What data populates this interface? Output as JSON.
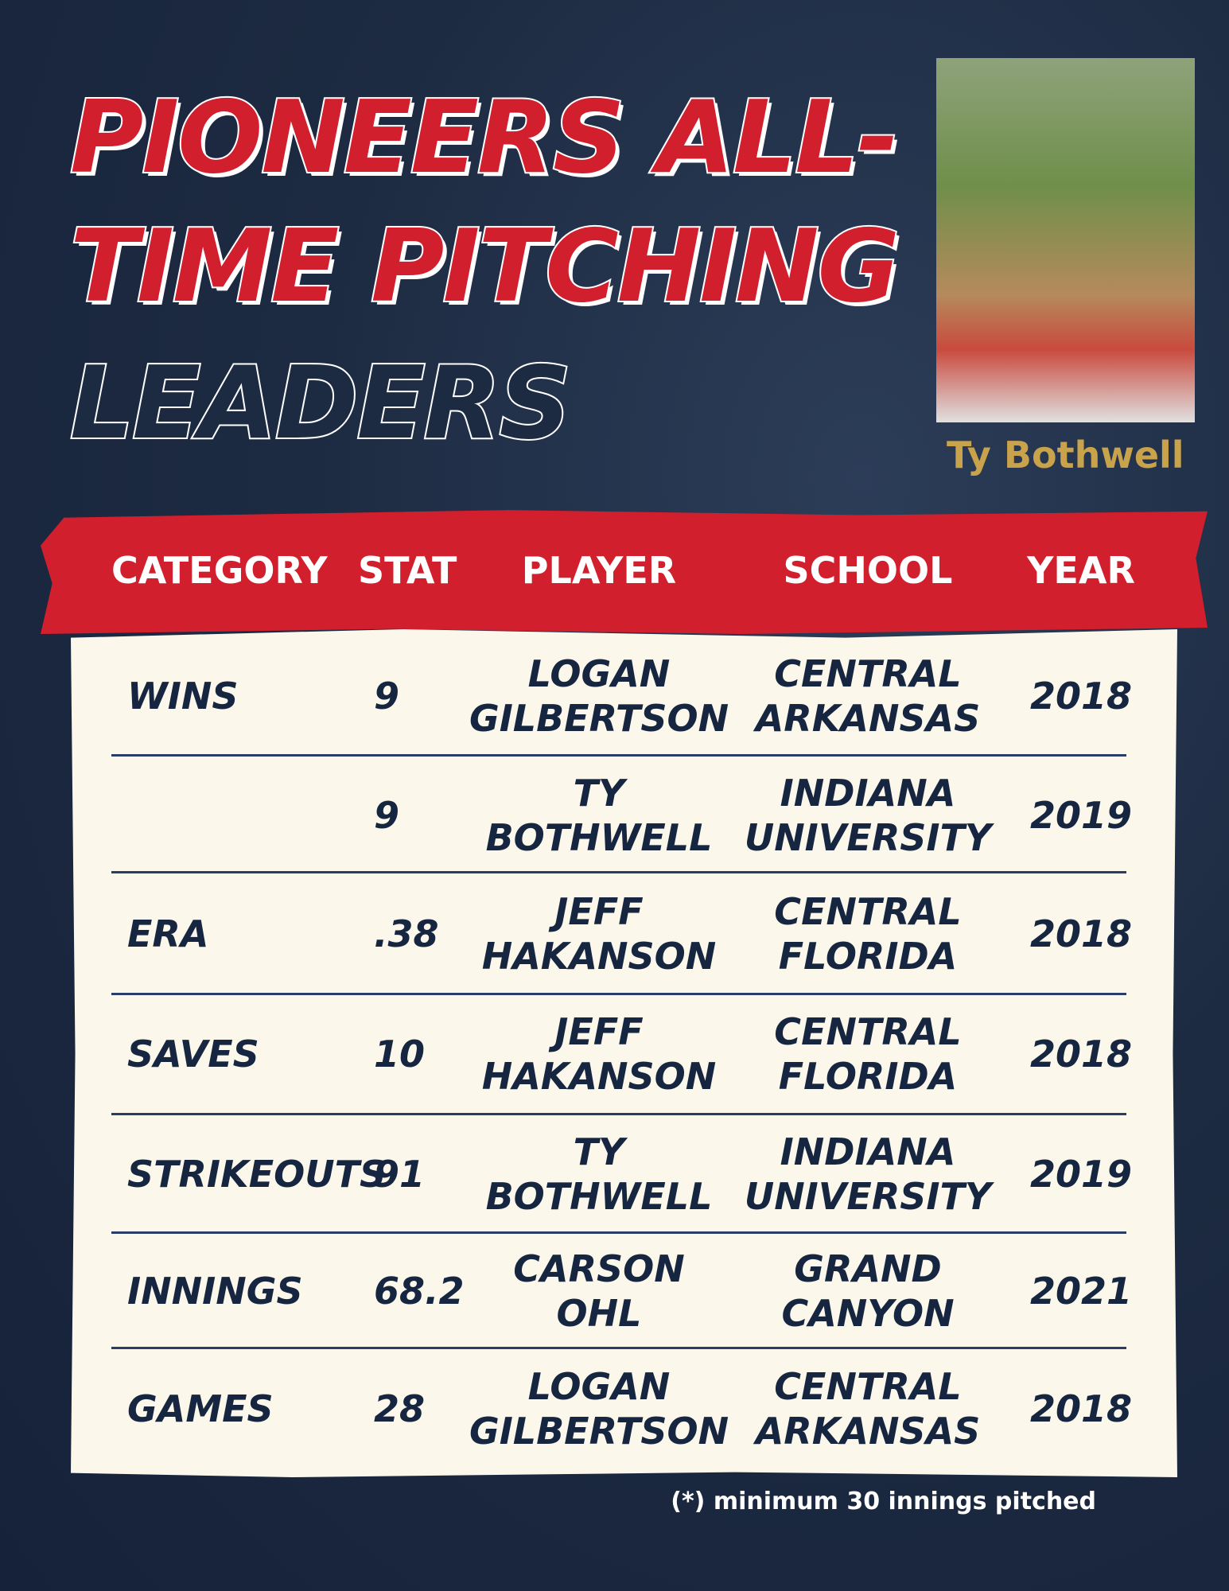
{
  "title": {
    "lines": [
      "PIONEERS ALL-",
      "TIME PITCHING",
      "LEADERS"
    ]
  },
  "photo": {
    "caption": "Ty Bothwell"
  },
  "table": {
    "columns": [
      "CATEGORY",
      "STAT",
      "PLAYER",
      "SCHOOL",
      "YEAR"
    ],
    "rows": [
      [
        "WINS",
        "9",
        "LOGAN GILBERTSON",
        "CENTRAL ARKANSAS",
        "2018"
      ],
      [
        null,
        "9",
        "TY BOTHWELL",
        "INDIANA UNIVERSITY",
        "2019"
      ],
      [
        "ERA",
        ".38",
        "JEFF HAKANSON",
        "CENTRAL FLORIDA",
        "2018"
      ],
      [
        "SAVES",
        "10",
        "JEFF HAKANSON",
        "CENTRAL FLORIDA",
        "2018"
      ],
      [
        "STRIKEOUTS",
        "91",
        "TY BOTHWELL",
        "INDIANA UNIVERSITY",
        "2019"
      ],
      [
        "INNINGS",
        "68.2",
        "CARSON OHL",
        "GRAND CANYON",
        "2021"
      ],
      [
        "GAMES",
        "28",
        "LOGAN GILBERTSON",
        "CENTRAL ARKANSAS",
        "2018"
      ]
    ]
  },
  "footnote": "(*) minimum 30 innings pitched"
}
